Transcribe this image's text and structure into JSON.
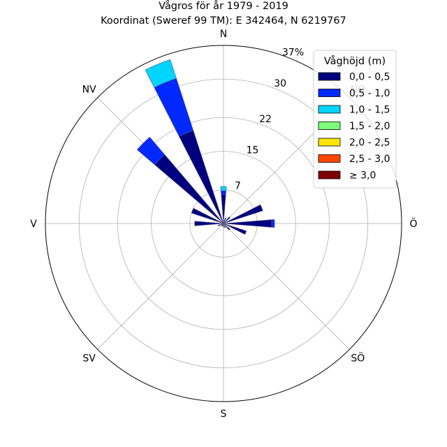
{
  "chart_data": {
    "type": "wind-rose",
    "title": "Vågros för år 1979 - 2019",
    "subtitle": "Koordinat (Sweref 99 TM): E 342464, N 6219767",
    "directions": [
      "N",
      "NO",
      "Ö",
      "SÖ",
      "S",
      "SV",
      "V",
      "NV"
    ],
    "rlim": [
      0,
      37
    ],
    "radial_ticks": [
      "7",
      "15",
      "22",
      "30",
      "37%"
    ],
    "radial_tick_values": [
      7,
      15,
      22,
      30,
      37
    ],
    "legend": {
      "title": "Våghöjd (m)",
      "placement": "top-right",
      "entries": [
        {
          "label": "0,0 - 0,5",
          "color": "#00007f"
        },
        {
          "label": "0,5 - 1,0",
          "color": "#0028ff"
        },
        {
          "label": "1,0 - 1,5",
          "color": "#00d4ff"
        },
        {
          "label": "1,5 - 2,0",
          "color": "#7dff7a"
        },
        {
          "label": "2,0 - 2,5",
          "color": "#ffe500"
        },
        {
          "label": "2,5 - 3,0",
          "color": "#ff4700"
        },
        {
          "label": "≥ 3,0",
          "color": "#7f0000"
        }
      ]
    },
    "sector_width_deg": 9,
    "sectors": [
      {
        "direction_deg": 0,
        "stack": [
          6.0,
          0.8,
          0.9
        ]
      },
      {
        "direction_deg": 22.5,
        "stack": [
          1.2
        ]
      },
      {
        "direction_deg": 45,
        "stack": [
          1.8
        ]
      },
      {
        "direction_deg": 67.5,
        "stack": [
          8.6
        ]
      },
      {
        "direction_deg": 90,
        "stack": [
          10.0,
          0.6
        ]
      },
      {
        "direction_deg": 112.5,
        "stack": [
          5.0
        ]
      },
      {
        "direction_deg": 135,
        "stack": [
          1.8
        ]
      },
      {
        "direction_deg": 157.5,
        "stack": [
          1.0
        ]
      },
      {
        "direction_deg": 180,
        "stack": [
          0.8
        ]
      },
      {
        "direction_deg": 202.5,
        "stack": [
          0.6
        ]
      },
      {
        "direction_deg": 225,
        "stack": [
          0.6
        ]
      },
      {
        "direction_deg": 247.5,
        "stack": [
          1.2
        ]
      },
      {
        "direction_deg": 270,
        "stack": [
          6.0
        ]
      },
      {
        "direction_deg": 292.5,
        "stack": [
          7.0
        ]
      },
      {
        "direction_deg": 315,
        "stack": [
          18.8,
          4.8
        ]
      },
      {
        "direction_deg": 337.5,
        "stack": [
          20.3,
          11.4,
          4.1
        ]
      }
    ],
    "grid": true
  }
}
